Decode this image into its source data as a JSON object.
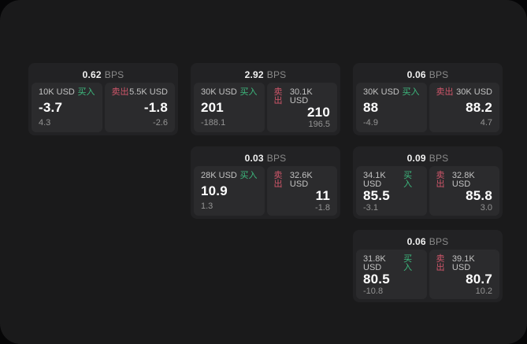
{
  "ui": {
    "bps_label": "BPS",
    "buy_label": "买入",
    "sell_label": "卖出"
  },
  "colors": {
    "buy": "#3dba7e",
    "sell": "#d0566a",
    "surface": "#1a1a1b",
    "card": "#222224",
    "panel": "#2b2b2d"
  },
  "cards": [
    {
      "bps_value": "0.62",
      "row": 1,
      "col": 1,
      "buy": {
        "amount": "10K USD",
        "price": "-3.7",
        "delta": "4.3"
      },
      "sell": {
        "amount": "5.5K USD",
        "price": "-1.8",
        "delta": "-2.6"
      }
    },
    {
      "bps_value": "2.92",
      "row": 1,
      "col": 2,
      "buy": {
        "amount": "30K USD",
        "price": "201",
        "delta": "-188.1"
      },
      "sell": {
        "amount": "30.1K USD",
        "price": "210",
        "delta": "196.5"
      }
    },
    {
      "bps_value": "0.06",
      "row": 1,
      "col": 3,
      "buy": {
        "amount": "30K USD",
        "price": "88",
        "delta": "-4.9"
      },
      "sell": {
        "amount": "30K USD",
        "price": "88.2",
        "delta": "4.7"
      }
    },
    {
      "bps_value": "0.03",
      "row": 2,
      "col": 2,
      "buy": {
        "amount": "28K USD",
        "price": "10.9",
        "delta": "1.3"
      },
      "sell": {
        "amount": "32.6K USD",
        "price": "11",
        "delta": "-1.8"
      }
    },
    {
      "bps_value": "0.09",
      "row": 2,
      "col": 3,
      "buy": {
        "amount": "34.1K USD",
        "price": "85.5",
        "delta": "-3.1"
      },
      "sell": {
        "amount": "32.8K USD",
        "price": "85.8",
        "delta": "3.0"
      }
    },
    {
      "bps_value": "0.06",
      "row": 3,
      "col": 3,
      "buy": {
        "amount": "31.8K USD",
        "price": "80.5",
        "delta": "-10.8"
      },
      "sell": {
        "amount": "39.1K USD",
        "price": "80.7",
        "delta": "10.2"
      }
    }
  ]
}
